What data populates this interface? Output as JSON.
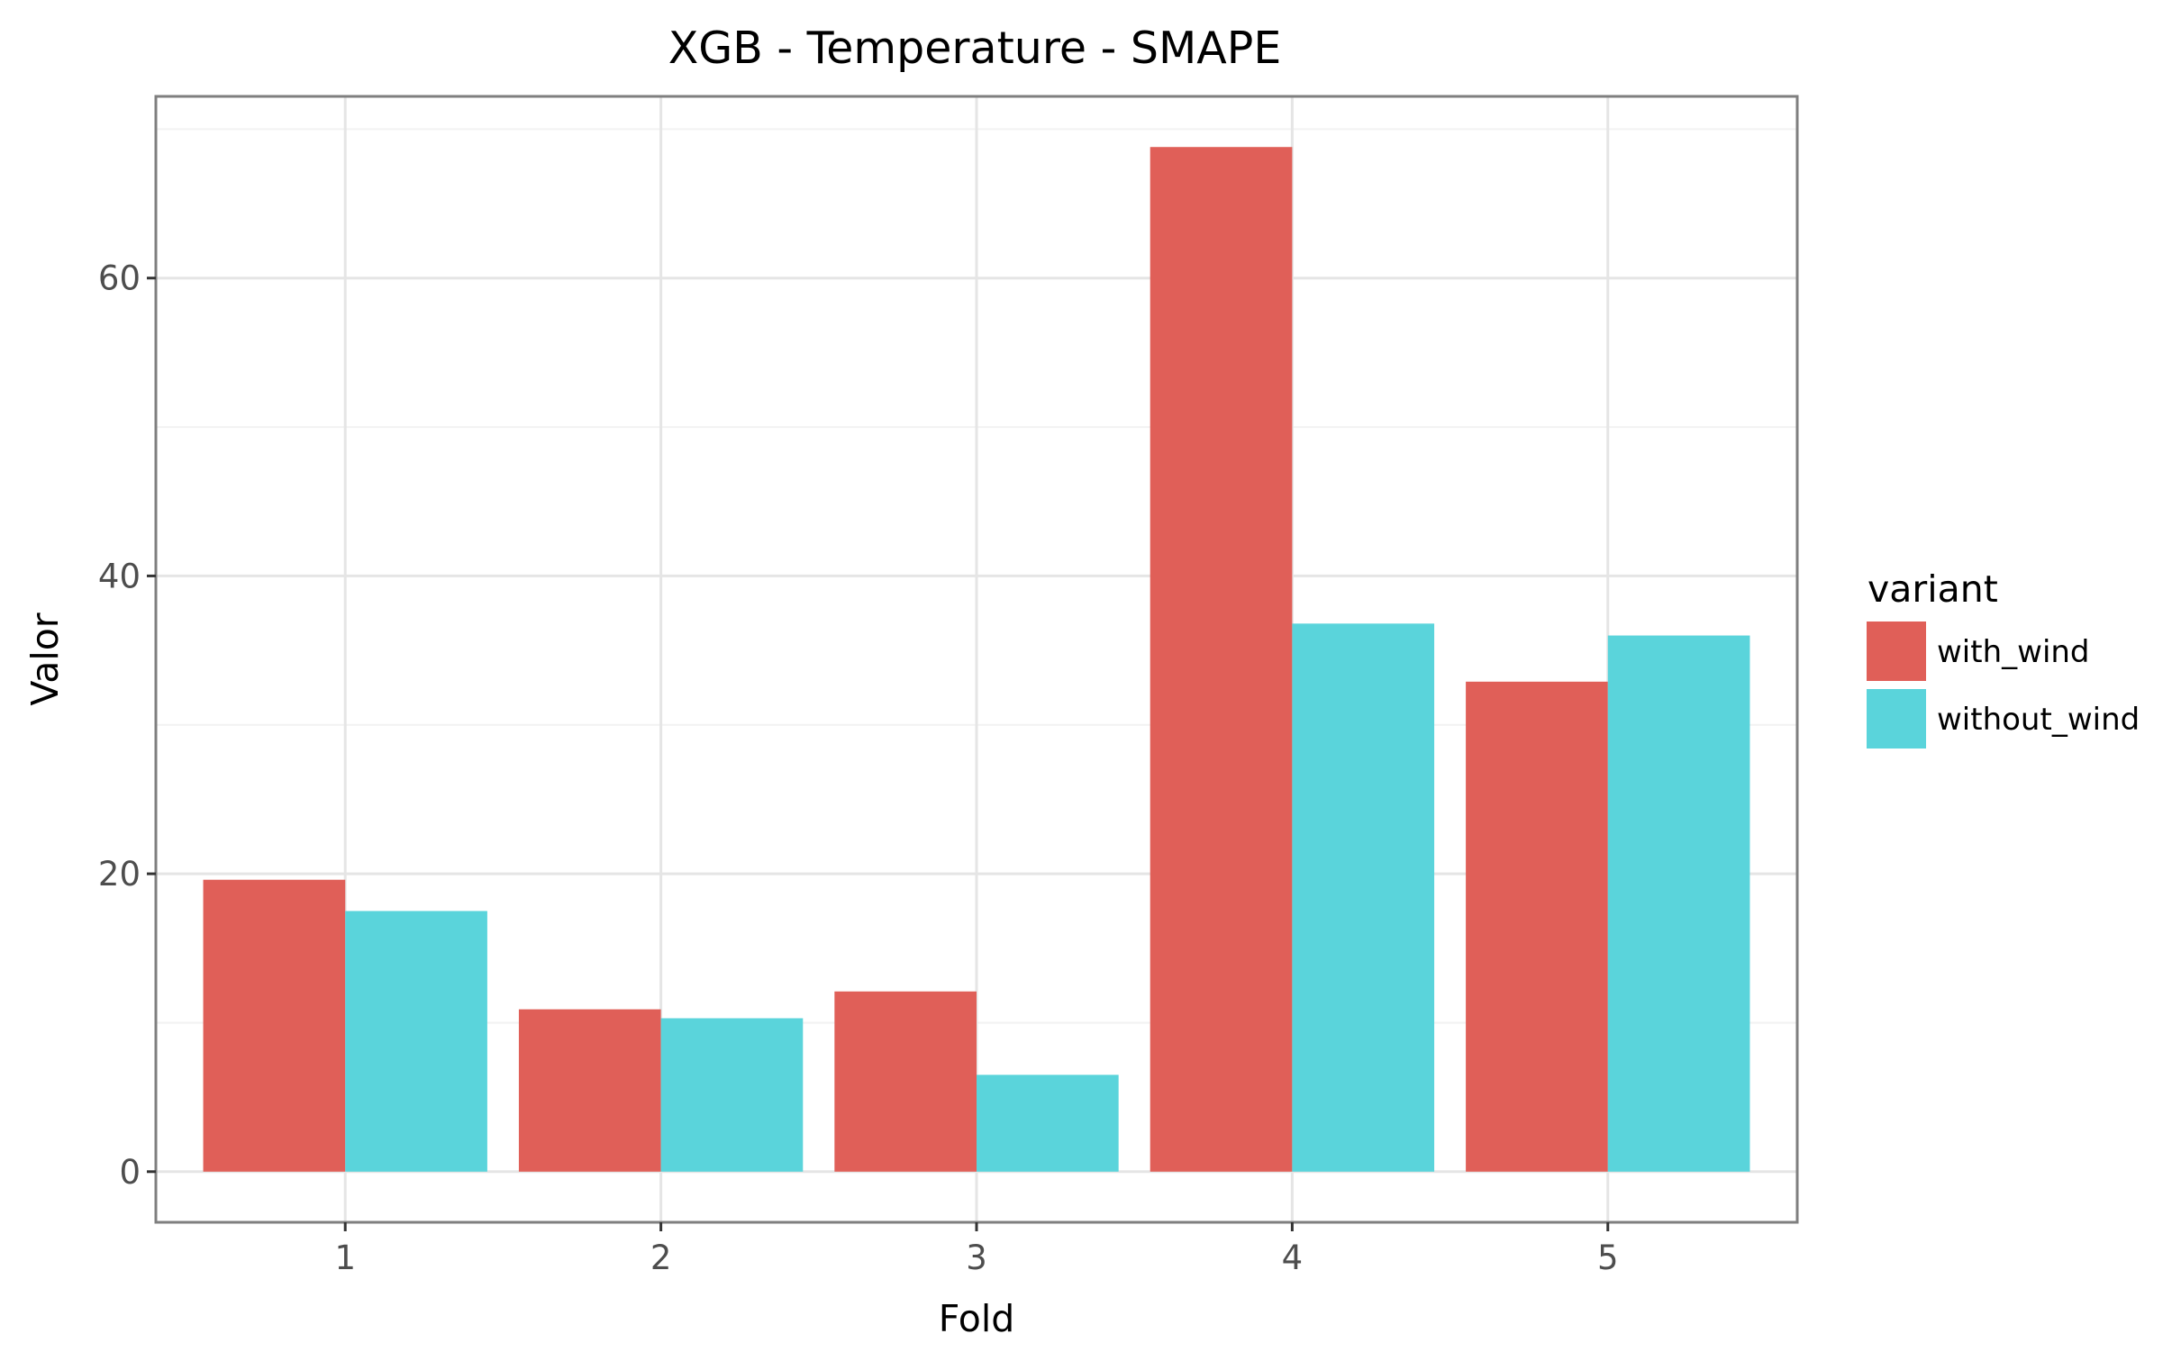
{
  "chart_data": {
    "type": "bar",
    "title": "XGB - Temperature - SMAPE",
    "xlabel": "Fold",
    "ylabel": "Valor",
    "categories": [
      "1",
      "2",
      "3",
      "4",
      "5"
    ],
    "series": [
      {
        "name": "with_wind",
        "color": "#E05F58",
        "values": [
          19.6,
          10.9,
          12.1,
          68.8,
          32.9
        ]
      },
      {
        "name": "without_wind",
        "color": "#5AD4DB",
        "values": [
          17.5,
          10.3,
          6.5,
          36.8,
          36.0
        ]
      }
    ],
    "yticks": [
      "0",
      "20",
      "40",
      "60"
    ],
    "ylim": [
      -3.4,
      72.2
    ],
    "grid": true,
    "legend": {
      "title": "variant",
      "position": "right"
    }
  }
}
